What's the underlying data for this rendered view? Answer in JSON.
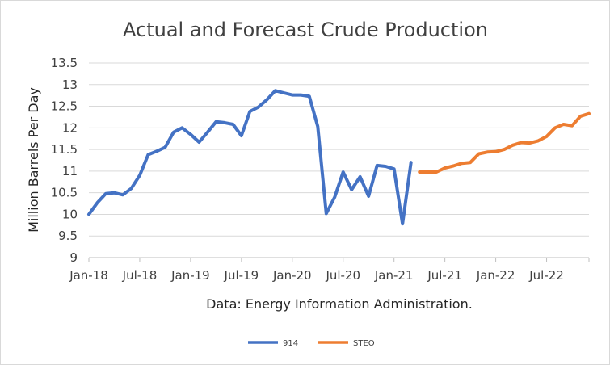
{
  "colors": {
    "914": "#4472C4",
    "STEO": "#ED7D31",
    "grid": "#D9D9D9",
    "text": "#404040"
  },
  "chart_data": {
    "type": "line",
    "title": "Actual and Forecast Crude Production",
    "ylabel": "Million Barrels Per Day",
    "xlabel": "",
    "note": "Data: Energy Information Administration.",
    "ylim": [
      9,
      13.5
    ],
    "yticks": [
      9,
      9.5,
      10,
      10.5,
      11,
      11.5,
      12,
      12.5,
      13,
      13.5
    ],
    "ytick_labels": [
      "9",
      "9.5",
      "10",
      "10.5",
      "11",
      "11.5",
      "12",
      "12.5",
      "13",
      "13.5"
    ],
    "xticks": [
      {
        "date": "2018-01",
        "label": "Jan-18"
      },
      {
        "date": "2018-07",
        "label": "Jul-18"
      },
      {
        "date": "2019-01",
        "label": "Jan-19"
      },
      {
        "date": "2019-07",
        "label": "Jul-19"
      },
      {
        "date": "2020-01",
        "label": "Jan-20"
      },
      {
        "date": "2020-07",
        "label": "Jul-20"
      },
      {
        "date": "2021-01",
        "label": "Jan-21"
      },
      {
        "date": "2021-07",
        "label": "Jul-21"
      },
      {
        "date": "2022-01",
        "label": "Jan-22"
      },
      {
        "date": "2022-07",
        "label": "Jul-22"
      }
    ],
    "grid": true,
    "legend": "bottom",
    "series": [
      {
        "name": "914",
        "x": [
          "2018-01",
          "2018-02",
          "2018-03",
          "2018-04",
          "2018-05",
          "2018-06",
          "2018-07",
          "2018-08",
          "2018-09",
          "2018-10",
          "2018-11",
          "2018-12",
          "2019-01",
          "2019-02",
          "2019-03",
          "2019-04",
          "2019-05",
          "2019-06",
          "2019-07",
          "2019-08",
          "2019-09",
          "2019-10",
          "2019-11",
          "2019-12",
          "2020-01",
          "2020-02",
          "2020-03",
          "2020-04",
          "2020-05",
          "2020-06",
          "2020-07",
          "2020-08",
          "2020-09",
          "2020-10",
          "2020-11",
          "2020-12",
          "2021-01",
          "2021-02",
          "2021-03"
        ],
        "values": [
          10.0,
          10.27,
          10.48,
          10.5,
          10.45,
          10.6,
          10.9,
          11.38,
          11.46,
          11.55,
          11.9,
          12.0,
          11.85,
          11.67,
          11.9,
          12.14,
          12.12,
          12.08,
          11.82,
          12.38,
          12.48,
          12.65,
          12.86,
          12.81,
          12.76,
          12.76,
          12.73,
          12.03,
          10.02,
          10.4,
          10.98,
          10.57,
          10.87,
          10.42,
          11.13,
          11.11,
          11.05,
          9.78,
          11.2
        ]
      },
      {
        "name": "STEO",
        "x": [
          "2021-04",
          "2021-05",
          "2021-06",
          "2021-07",
          "2021-08",
          "2021-09",
          "2021-10",
          "2021-11",
          "2021-12",
          "2022-01",
          "2022-02",
          "2022-03",
          "2022-04",
          "2022-05",
          "2022-06",
          "2022-07",
          "2022-08",
          "2022-09",
          "2022-10",
          "2022-11",
          "2022-12"
        ],
        "values": [
          10.98,
          10.98,
          10.98,
          11.07,
          11.12,
          11.18,
          11.2,
          11.4,
          11.44,
          11.45,
          11.5,
          11.6,
          11.66,
          11.65,
          11.7,
          11.8,
          12.0,
          12.08,
          12.05,
          12.27,
          12.33
        ]
      }
    ]
  }
}
